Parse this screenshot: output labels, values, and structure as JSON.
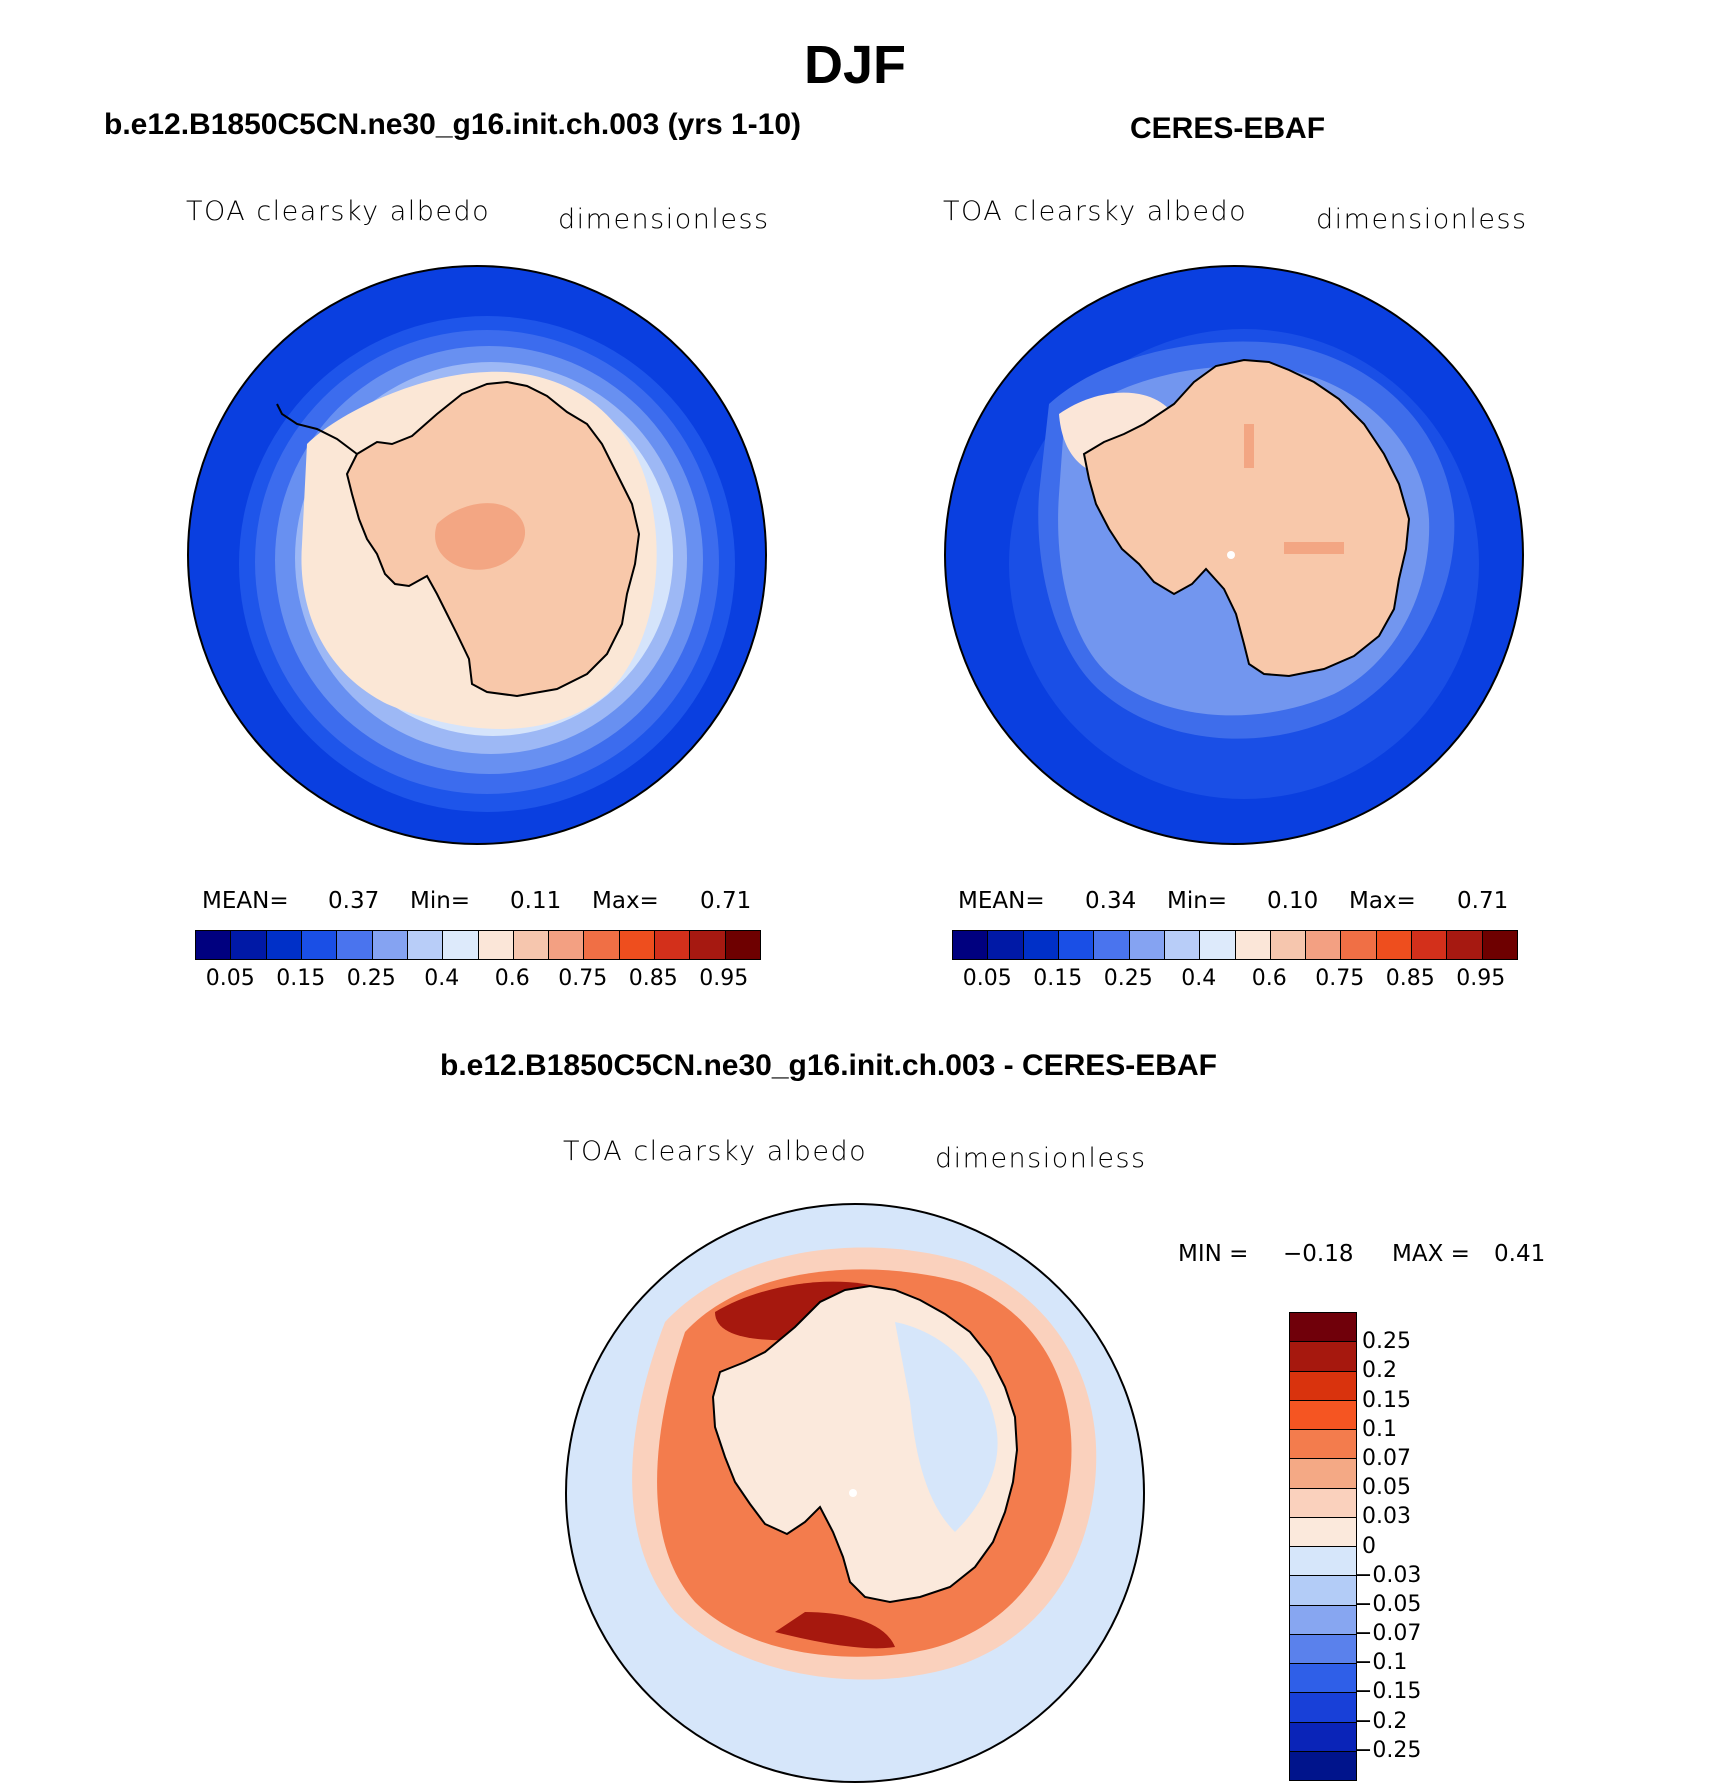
{
  "figure": {
    "season": "DJF"
  },
  "panels": {
    "model": {
      "title": "b.e12.B1850C5CN.ne30_g16.init.ch.003 (yrs 1-10)",
      "variable": "TOA clearsky albedo",
      "units": "dimensionless",
      "mean_label": "MEAN=",
      "mean_value": "0.37",
      "min_label": "Min=",
      "min_value": "0.11",
      "max_label": "Max=",
      "max_value": "0.71"
    },
    "obs": {
      "title": "CERES-EBAF",
      "variable": "TOA clearsky albedo",
      "units": "dimensionless",
      "mean_label": "MEAN=",
      "mean_value": "0.34",
      "min_label": "Min=",
      "min_value": "0.10",
      "max_label": "Max=",
      "max_value": "0.71"
    },
    "diff": {
      "title": "b.e12.B1850C5CN.ne30_g16.init.ch.003 - CERES-EBAF",
      "variable": "TOA clearsky albedo",
      "units": "dimensionless",
      "min_label": "MIN =",
      "min_value": "−0.18",
      "max_label": "MAX =",
      "max_value": "0.41"
    }
  },
  "colorbars": {
    "absolute": {
      "colors": [
        "#00007f",
        "#0019a6",
        "#0030c8",
        "#1a4fe6",
        "#4a74ee",
        "#85a3f2",
        "#b8cdf8",
        "#ddeafb",
        "#fbe6d8",
        "#f6c6ae",
        "#f3a082",
        "#f06f45",
        "#ee4e1e",
        "#d3301b",
        "#a61911",
        "#6e0000"
      ],
      "tick_labels": [
        "0.05",
        "0.15",
        "0.25",
        "0.4",
        "0.6",
        "0.75",
        "0.85",
        "0.95"
      ]
    },
    "difference": {
      "colors": [
        "#70000a",
        "#a6180e",
        "#d9330d",
        "#f55522",
        "#f37c4d",
        "#f4a985",
        "#fad1bd",
        "#fbe9dc",
        "#d6e6fa",
        "#b3ccf7",
        "#87a6f1",
        "#5a81ec",
        "#2f5fe8",
        "#1840d8",
        "#0a24b8",
        "#00148c"
      ],
      "tick_labels": [
        "0.25",
        "0.2",
        "0.15",
        "0.1",
        "0.07",
        "0.05",
        "0.03",
        "0",
        "−0.03",
        "−0.05",
        "−0.07",
        "−0.1",
        "−0.15",
        "−0.2",
        "−0.25"
      ]
    }
  }
}
